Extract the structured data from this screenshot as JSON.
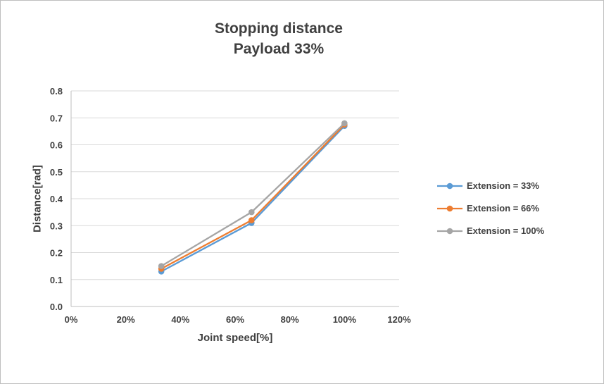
{
  "chart_data": {
    "type": "line",
    "title": "Stopping distance",
    "subtitle": "Payload 33%",
    "xlabel": "Joint speed[%]",
    "ylabel": "Distance[rad]",
    "xlim": [
      0,
      120
    ],
    "ylim": [
      0,
      0.8
    ],
    "x_ticks": [
      0,
      20,
      40,
      60,
      80,
      100,
      120
    ],
    "x_tick_labels": [
      "0%",
      "20%",
      "40%",
      "60%",
      "80%",
      "100%",
      "120%"
    ],
    "y_ticks": [
      0,
      0.1,
      0.2,
      0.3,
      0.4,
      0.5,
      0.6,
      0.7,
      0.8
    ],
    "y_tick_labels": [
      "0.0",
      "0.1",
      "0.2",
      "0.3",
      "0.4",
      "0.5",
      "0.6",
      "0.7",
      "0.8"
    ],
    "grid": "horizontal",
    "legend_position": "right",
    "x": [
      33,
      66,
      100
    ],
    "series": [
      {
        "name": "Extension = 33%",
        "color": "#5B9BD5",
        "values": [
          0.13,
          0.31,
          0.67
        ]
      },
      {
        "name": "Extension = 66%",
        "color": "#ED7D31",
        "values": [
          0.14,
          0.32,
          0.675
        ]
      },
      {
        "name": "Extension = 100%",
        "color": "#A5A5A5",
        "values": [
          0.15,
          0.35,
          0.68
        ]
      }
    ]
  },
  "colors": {
    "text": "#404040",
    "grid": "#D9D9D9",
    "axis": "#BFBFBF",
    "border": "#BFBFBF",
    "background": "#FFFFFF"
  }
}
